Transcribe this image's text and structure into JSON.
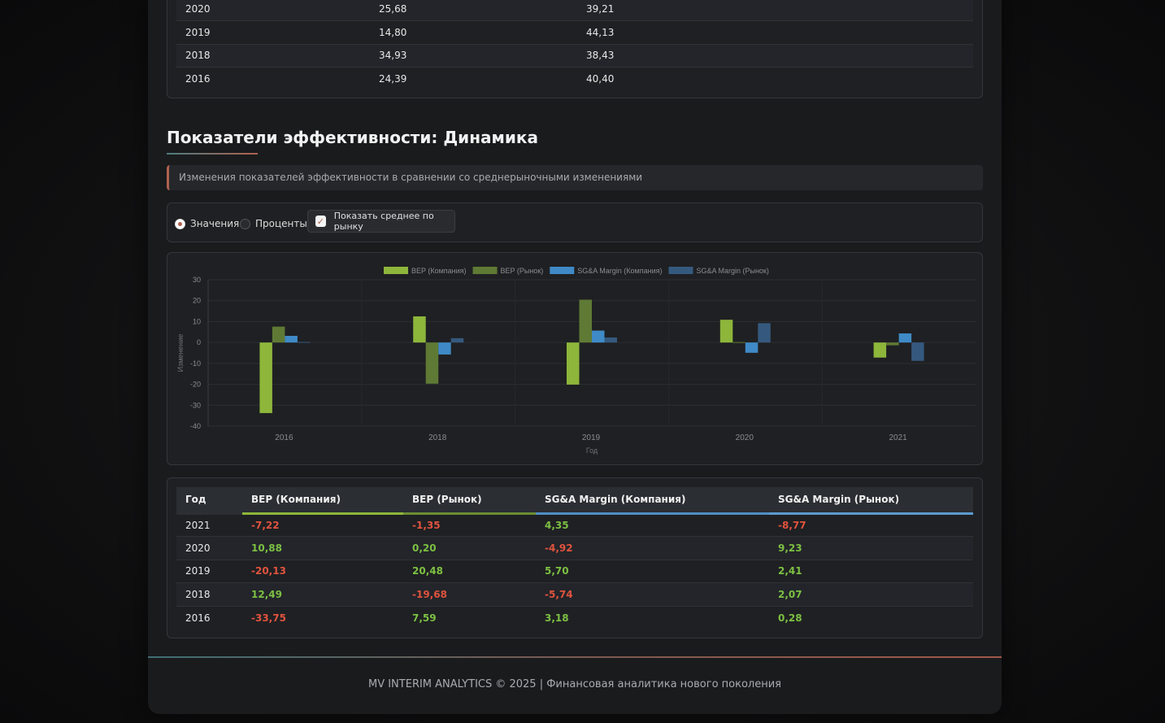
{
  "top_table": {
    "rows": [
      [
        "2020",
        "25,68",
        "39,21"
      ],
      [
        "2019",
        "14,80",
        "44,13"
      ],
      [
        "2018",
        "34,93",
        "38,43"
      ],
      [
        "2016",
        "24,39",
        "40,40"
      ]
    ]
  },
  "section": {
    "title": "Показатели эффективности: Динамика",
    "description": "Изменения показателей эффективности в сравнении со среднерыночными изменениями"
  },
  "controls": {
    "radio_values_label": "Значения",
    "radio_percent_label": "Проценты",
    "checkbox_label": "Показать среднее по рынку",
    "selected": "values",
    "checkbox_checked": true
  },
  "chart_data": {
    "type": "bar",
    "categories": [
      "2016",
      "2018",
      "2019",
      "2020",
      "2021"
    ],
    "series": [
      {
        "name": "BEP (Компания)",
        "color": "#8db63b",
        "values": [
          -33.75,
          12.49,
          -20.13,
          10.88,
          -7.22
        ]
      },
      {
        "name": "BEP (Рынок)",
        "color": "#5f7a35",
        "values": [
          7.59,
          -19.68,
          20.48,
          0.2,
          -1.35
        ]
      },
      {
        "name": "SG&A Margin (Компания)",
        "color": "#3f8ac6",
        "values": [
          3.18,
          -5.74,
          5.7,
          -4.92,
          4.35
        ]
      },
      {
        "name": "SG&A Margin (Рынок)",
        "color": "#35597e",
        "values": [
          0.28,
          2.07,
          2.41,
          9.23,
          -8.77
        ]
      }
    ],
    "xlabel": "Год",
    "ylabel": "Изменение",
    "ylim": [
      -40,
      30
    ],
    "yticks": [
      30,
      20,
      10,
      0,
      -10,
      -20,
      -30,
      -40
    ],
    "legend_position": "top-center",
    "grid": true
  },
  "bottom_table": {
    "headers": [
      "Год",
      "BEP (Компания)",
      "BEP (Рынок)",
      "SG&A Margin (Компания)",
      "SG&A Margin (Рынок)"
    ],
    "rows": [
      [
        "2021",
        "-7,22",
        "-1,35",
        "4,35",
        "-8,77"
      ],
      [
        "2020",
        "10,88",
        "0,20",
        "-4,92",
        "9,23"
      ],
      [
        "2019",
        "-20,13",
        "20,48",
        "5,70",
        "2,41"
      ],
      [
        "2018",
        "12,49",
        "-19,68",
        "-5,74",
        "2,07"
      ],
      [
        "2016",
        "-33,75",
        "7,59",
        "3,18",
        "0,28"
      ]
    ]
  },
  "footer": {
    "text": "MV INTERIM ANALYTICS © 2025 | Финансовая аналитика нового поколения"
  }
}
